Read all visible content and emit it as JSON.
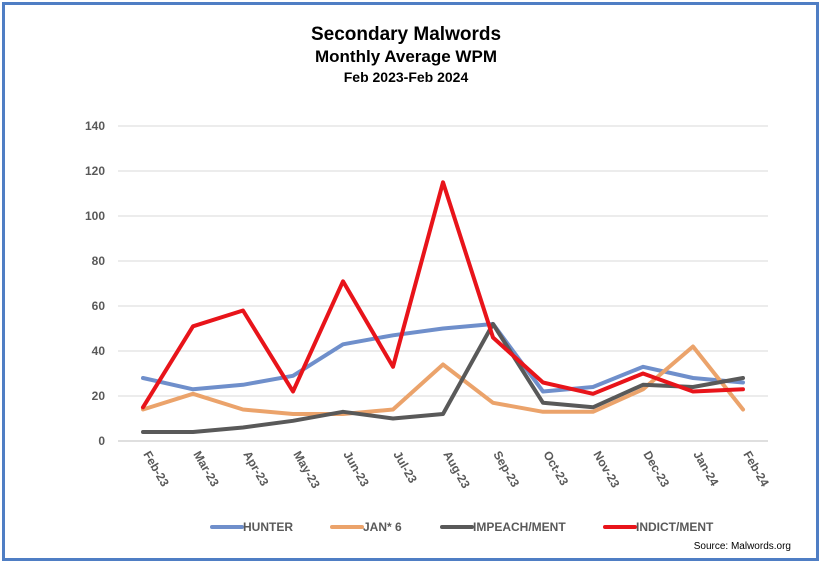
{
  "chart_data": {
    "type": "line",
    "title": "Secondary Malwords",
    "subtitle": "Monthly Average WPM",
    "subtitle2": "Feb 2023-Feb 2024",
    "xlabel": "",
    "ylabel": "",
    "ylim": [
      0,
      140
    ],
    "yticks": [
      0,
      20,
      40,
      60,
      80,
      100,
      120,
      140
    ],
    "grid": true,
    "legend_position": "bottom",
    "categories": [
      "Feb-23",
      "Mar-23",
      "Apr-23",
      "May-23",
      "Jun-23",
      "Jul-23",
      "Aug-23",
      "Sep-23",
      "Oct-23",
      "Nov-23",
      "Dec-23",
      "Jan-24",
      "Feb-24"
    ],
    "series": [
      {
        "name": "HUNTER",
        "color": "#6f8fcb",
        "values": [
          28,
          23,
          25,
          29,
          43,
          47,
          50,
          52,
          22,
          24,
          33,
          28,
          26
        ]
      },
      {
        "name": "JAN* 6",
        "color": "#eba36b",
        "values": [
          14,
          21,
          14,
          12,
          12,
          14,
          34,
          17,
          13,
          13,
          23,
          42,
          14
        ]
      },
      {
        "name": "IMPEACH/MENT",
        "color": "#595959",
        "values": [
          4,
          4,
          6,
          9,
          13,
          10,
          12,
          52,
          17,
          15,
          25,
          24,
          28
        ]
      },
      {
        "name": "INDICT/MENT",
        "color": "#e8141a",
        "values": [
          15,
          51,
          58,
          22,
          71,
          33,
          115,
          46,
          26,
          21,
          30,
          22,
          23
        ]
      }
    ],
    "source": "Source: Malwords.org"
  }
}
